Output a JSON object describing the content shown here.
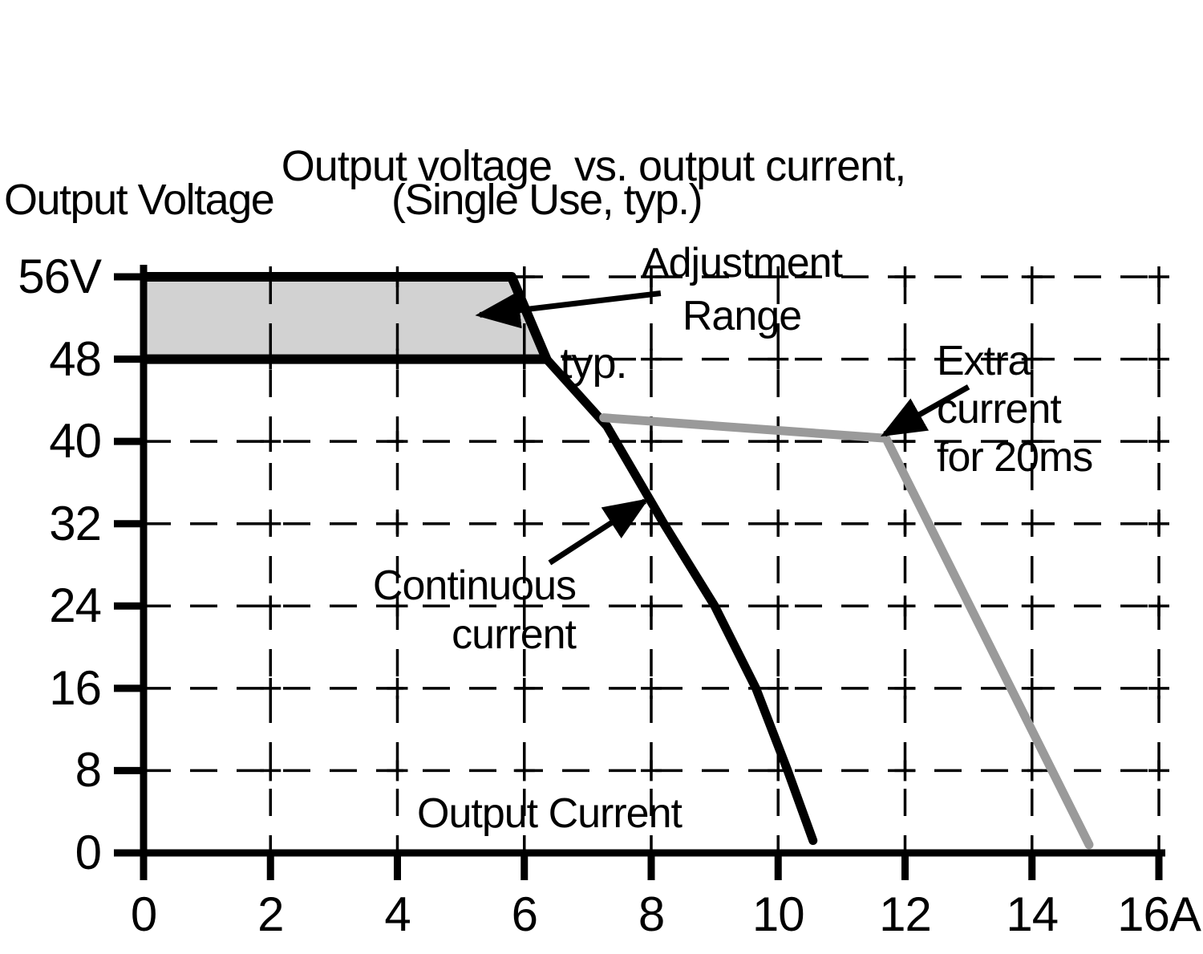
{
  "title": {
    "line1": "Output voltage  vs. output current,",
    "line2": "typ."
  },
  "axis_titles": {
    "y": "Output Voltage",
    "y_note": "(Single Use, typ.)",
    "x": "Output Current"
  },
  "colors": {
    "ink": "#000000",
    "gray_series": "#9a9a9a",
    "band_fill": "#d2d2d2"
  },
  "chart_data": {
    "type": "line",
    "title": "Output voltage vs. output current, typ.",
    "subtitle": "(Single Use, typ.)",
    "xlabel": "Output Current",
    "ylabel": "Output Voltage",
    "x_unit": "A",
    "y_unit": "V",
    "xlim": [
      0,
      16
    ],
    "ylim": [
      0,
      56
    ],
    "grid": "dashed-with-crosses",
    "legend_position": "none",
    "x_ticks": [
      {
        "value": 0,
        "label": "0"
      },
      {
        "value": 2,
        "label": "2"
      },
      {
        "value": 4,
        "label": "4"
      },
      {
        "value": 6,
        "label": "6"
      },
      {
        "value": 8,
        "label": "8"
      },
      {
        "value": 10,
        "label": "10"
      },
      {
        "value": 12,
        "label": "12"
      },
      {
        "value": 14,
        "label": "14"
      },
      {
        "value": 16,
        "label": "16A"
      }
    ],
    "y_ticks": [
      {
        "value": 56,
        "label": "56V"
      },
      {
        "value": 48,
        "label": "48"
      },
      {
        "value": 40,
        "label": "40"
      },
      {
        "value": 32,
        "label": "32"
      },
      {
        "value": 24,
        "label": "24"
      },
      {
        "value": 16,
        "label": "16"
      },
      {
        "value": 8,
        "label": "8"
      },
      {
        "value": 0,
        "label": "0"
      }
    ],
    "adjustment_band": {
      "label": "Adjustment Range",
      "fill": "#d2d2d2",
      "border_color": "#000000",
      "points": [
        [
          0,
          56
        ],
        [
          5.8,
          56
        ],
        [
          6.35,
          48
        ],
        [
          0,
          48
        ]
      ]
    },
    "series": [
      {
        "name": "Continuous current",
        "color": "#000000",
        "points": [
          [
            5.8,
            56
          ],
          [
            6.35,
            48
          ],
          [
            7.3,
            41.5
          ],
          [
            8.2,
            32
          ],
          [
            9.0,
            24
          ],
          [
            9.65,
            16
          ],
          [
            10.15,
            8
          ],
          [
            10.55,
            1.2
          ]
        ]
      },
      {
        "name": "Extra current for 20ms",
        "color": "#9a9a9a",
        "points": [
          [
            7.25,
            42.3
          ],
          [
            11.7,
            40.3
          ],
          [
            14.9,
            0.8
          ]
        ]
      }
    ],
    "annotations": [
      {
        "name": "adjustment-range",
        "lines": [
          "Adjustment",
          "Range"
        ],
        "arrow_from": [
          8.15,
          54.4
        ],
        "arrow_to": [
          5.3,
          52.3
        ]
      },
      {
        "name": "continuous-current",
        "lines": [
          "Continuous",
          "current"
        ],
        "arrow_from": [
          6.4,
          28.2
        ],
        "arrow_to": [
          7.9,
          34.2
        ]
      },
      {
        "name": "extra-current",
        "lines": [
          "Extra",
          "current",
          "for 20ms"
        ],
        "arrow_from": [
          13.0,
          45.3
        ],
        "arrow_to": [
          11.68,
          40.7
        ]
      }
    ]
  }
}
